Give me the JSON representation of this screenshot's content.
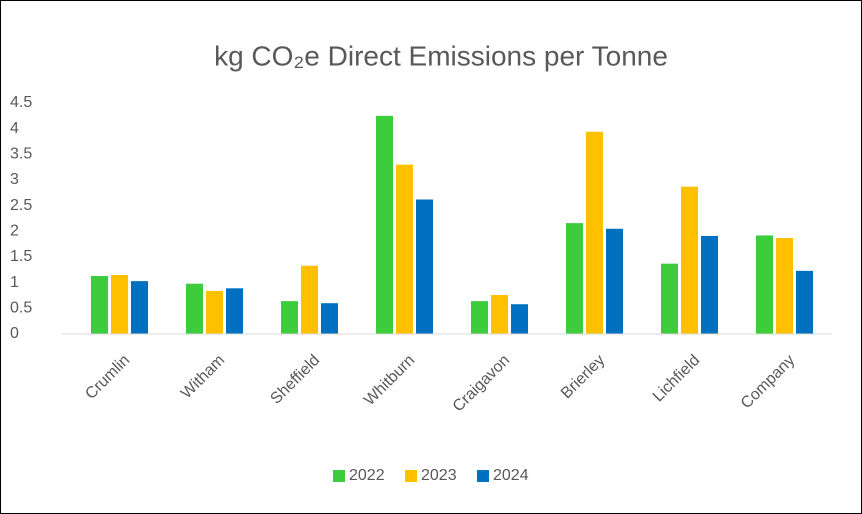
{
  "chart_data": {
    "type": "bar",
    "title": "kg CO₂e Direct Emissions per Tonne",
    "categories": [
      "Crumlin",
      "Witham",
      "Sheffield",
      "Whitburn",
      "Craigavon",
      "Brierley",
      "Lichfield",
      "Company"
    ],
    "series": [
      {
        "name": "2022",
        "color": "#3ccc3c",
        "values": [
          1.13,
          0.98,
          0.64,
          4.25,
          0.64,
          2.16,
          1.37,
          1.92
        ]
      },
      {
        "name": "2023",
        "color": "#ffc000",
        "values": [
          1.15,
          0.84,
          1.33,
          3.3,
          0.76,
          3.94,
          2.87,
          1.87
        ]
      },
      {
        "name": "2024",
        "color": "#0070c0",
        "values": [
          1.03,
          0.89,
          0.6,
          2.62,
          0.58,
          2.05,
          1.91,
          1.23
        ]
      }
    ],
    "ylim": [
      0,
      4.5
    ],
    "yticks": [
      0,
      0.5,
      1,
      1.5,
      2,
      2.5,
      3,
      3.5,
      4,
      4.5
    ],
    "grid": false,
    "legend": "bottom"
  }
}
